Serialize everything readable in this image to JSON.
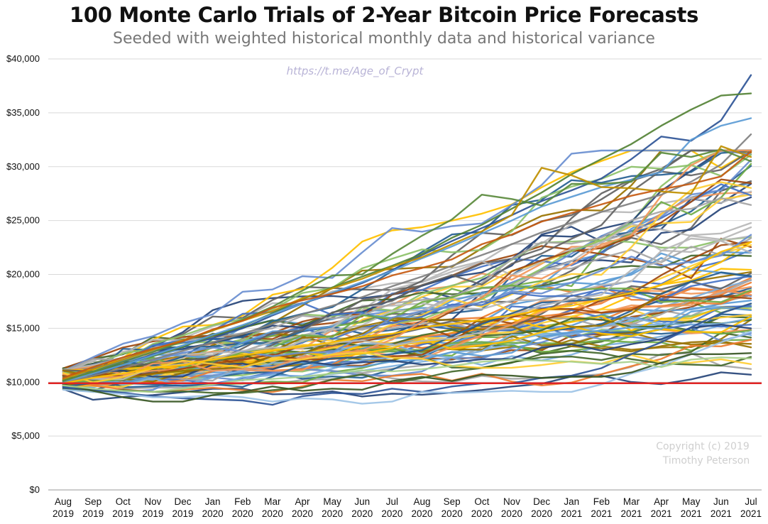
{
  "chart_data": {
    "type": "line",
    "title": "100 Monte Carlo Trials of 2-Year Bitcoin Price Forecasts",
    "subtitle": "Seeded with weighted historical monthly data and historical variance",
    "watermark": "https://t.me/Age_of_Crypt",
    "copyright": [
      "Copyright (c) 2019",
      "Timothy Peterson"
    ],
    "categories": [
      [
        "Aug",
        "2019"
      ],
      [
        "Sep",
        "2019"
      ],
      [
        "Oct",
        "2019"
      ],
      [
        "Nov",
        "2019"
      ],
      [
        "Dec",
        "2019"
      ],
      [
        "Jan",
        "2020"
      ],
      [
        "Feb",
        "2020"
      ],
      [
        "Mar",
        "2020"
      ],
      [
        "Apr",
        "2020"
      ],
      [
        "May",
        "2020"
      ],
      [
        "Jun",
        "2020"
      ],
      [
        "Jul",
        "2020"
      ],
      [
        "Aug",
        "2020"
      ],
      [
        "Sep",
        "2020"
      ],
      [
        "Oct",
        "2020"
      ],
      [
        "Nov",
        "2020"
      ],
      [
        "Dec",
        "2020"
      ],
      [
        "Jan",
        "2021"
      ],
      [
        "Feb",
        "2021"
      ],
      [
        "Mar",
        "2021"
      ],
      [
        "Apr",
        "2021"
      ],
      [
        "May",
        "2021"
      ],
      [
        "Jun",
        "2021"
      ],
      [
        "Jul",
        "2021"
      ]
    ],
    "ylim": [
      0,
      40000
    ],
    "y_ticks": [
      0,
      5000,
      10000,
      15000,
      20000,
      25000,
      30000,
      35000,
      40000
    ],
    "y_tick_labels": [
      "$0",
      "$5,000",
      "$10,000",
      "$15,000",
      "$20,000",
      "$25,000",
      "$30,000",
      "$35,000",
      "$40,000"
    ],
    "grid": true,
    "legend": "none",
    "reference_line": {
      "value": 9900,
      "color": "#e02424"
    },
    "num_trials": 100,
    "palette": [
      "#4472c4",
      "#ed7d31",
      "#a5a5a5",
      "#ffc000",
      "#5b9bd5",
      "#70ad47",
      "#264478",
      "#9e480e",
      "#636363",
      "#997300",
      "#255e91",
      "#43682b",
      "#698ed0",
      "#f1975a",
      "#b7b7b7",
      "#ffcd33",
      "#7cafdd",
      "#8cc168"
    ],
    "highlighted_trials": [
      {
        "color": "#2f5597",
        "values": [
          9800,
          10600,
          11600,
          12600,
          13400,
          14100,
          15000,
          16200,
          17300,
          18200,
          19200,
          20400,
          21800,
          23100,
          24300,
          25500,
          26800,
          27800,
          28900,
          30700,
          32800,
          32400,
          34300,
          38500
        ]
      },
      {
        "color": "#548235",
        "values": [
          10200,
          10900,
          11700,
          12400,
          13300,
          14300,
          15200,
          16400,
          17700,
          18800,
          19800,
          20800,
          21900,
          23400,
          24600,
          26100,
          27600,
          29300,
          30700,
          32100,
          33800,
          35300,
          36600,
          36800
        ]
      },
      {
        "color": "#5b9bd5",
        "values": [
          10000,
          10800,
          11600,
          12500,
          13400,
          14400,
          15300,
          16300,
          17300,
          18300,
          19300,
          20300,
          21500,
          22600,
          23800,
          25000,
          26300,
          27200,
          28100,
          28800,
          29500,
          32500,
          33800,
          34500
        ]
      },
      {
        "color": "#808080",
        "values": [
          9900,
          10600,
          11300,
          12100,
          12900,
          13700,
          14500,
          15400,
          16300,
          17100,
          17900,
          18900,
          19800,
          20800,
          21800,
          22800,
          23900,
          24800,
          25800,
          26600,
          27400,
          28600,
          30200,
          33000
        ]
      },
      {
        "color": "#5a8a3c",
        "values": [
          10100,
          11000,
          11900,
          12800,
          13800,
          14800,
          15800,
          17000,
          18500,
          19900,
          20000,
          21900,
          23600,
          25100,
          27400,
          27000,
          26400,
          28400,
          28400,
          28600,
          31300,
          30900,
          31600,
          30500
        ]
      },
      {
        "color": "#bf8f00",
        "values": [
          10300,
          11200,
          12100,
          13000,
          13900,
          14800,
          15700,
          16600,
          17800,
          18700,
          19600,
          20700,
          21600,
          22800,
          24000,
          25500,
          29900,
          29200,
          28100,
          28000,
          27700,
          27500,
          31900,
          30900
        ]
      },
      {
        "color": "#2f5597",
        "values": [
          9500,
          9300,
          9000,
          8700,
          8500,
          8400,
          8300,
          7900,
          8700,
          9000,
          8900,
          9400,
          9100,
          9600,
          9900,
          9900,
          10400,
          10600,
          11300,
          12600,
          13700,
          15100,
          16400,
          17300
        ]
      },
      {
        "color": "#9dc3e6",
        "values": [
          9300,
          9100,
          8900,
          8600,
          8600,
          8800,
          8600,
          8200,
          8500,
          8400,
          8000,
          8200,
          9100,
          9000,
          9100,
          9200,
          9100,
          9100,
          9800,
          10800,
          11500,
          12600,
          13700,
          14700
        ]
      },
      {
        "color": "#375623",
        "values": [
          9800,
          9200,
          8600,
          8200,
          8200,
          8800,
          9100,
          9600,
          9200,
          9400,
          9300,
          10100,
          10500,
          10100,
          10700,
          10600,
          10400,
          10500,
          10500,
          10900,
          11800,
          12600,
          12600,
          12700
        ]
      },
      {
        "color": "#a9d18e",
        "values": [
          9700,
          9400,
          9200,
          9100,
          9400,
          9800,
          10200,
          10300,
          10500,
          10800,
          11100,
          11000,
          11200,
          11500,
          11900,
          12100,
          12000,
          11900,
          11700,
          11900,
          11400,
          12100,
          12300,
          12200
        ]
      },
      {
        "color": "#c55a11",
        "values": [
          10400,
          11400,
          12300,
          13100,
          13800,
          14900,
          15700,
          16900,
          17600,
          18200,
          18900,
          19900,
          20600,
          21400,
          22800,
          23700,
          24900,
          25700,
          26500,
          27300,
          27900,
          28400,
          29100,
          31400
        ]
      },
      {
        "color": "#ffc000",
        "values": [
          9900,
          10400,
          10800,
          11300,
          11600,
          12100,
          12500,
          12900,
          13300,
          13700,
          14200,
          14500,
          15100,
          15400,
          15800,
          16200,
          16700,
          17100,
          17700,
          18300,
          19000,
          20500,
          22100,
          23000
        ]
      }
    ]
  }
}
